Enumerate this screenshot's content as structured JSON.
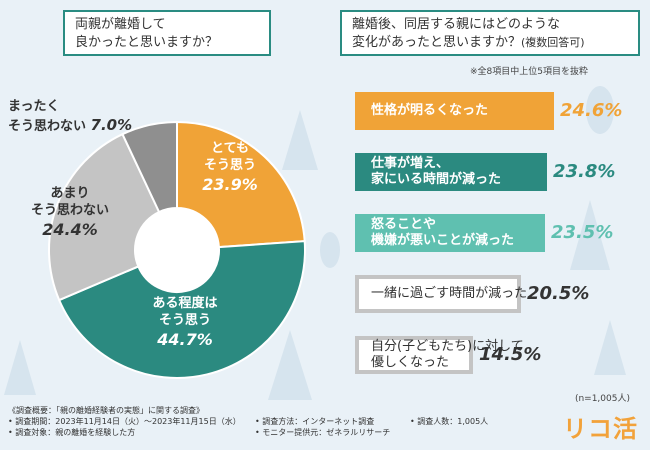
{
  "q1": {
    "line1": "両親が離婚して",
    "line2": "良かったと思いますか？"
  },
  "q2": {
    "line1": "離婚後、同居する親にはどのような",
    "line2": "変化があったと思いますか？",
    "line2_small": "(複数回答可)"
  },
  "note_top": "※全8項目中上位5項目を抜粋",
  "chart_data": [
    {
      "type": "pie",
      "title": "両親が離婚して良かったと思いますか？",
      "slices": [
        {
          "label_l1": "とても",
          "label_l2": "そう思う",
          "value": 23.9,
          "value_text": "23.9%",
          "color": "#f0a337"
        },
        {
          "label_l1": "ある程度は",
          "label_l2": "そう思う",
          "value": 44.7,
          "value_text": "44.7%",
          "color": "#2b8a80"
        },
        {
          "label_l1": "あまり",
          "label_l2": "そう思わない",
          "value": 24.4,
          "value_text": "24.4%",
          "color": "#c4c4c4"
        },
        {
          "label_l1": "まったく",
          "label_l2": "そう思わない",
          "value": 7.0,
          "value_text": "7.0%",
          "color": "#8f8f8f"
        }
      ]
    },
    {
      "type": "bar",
      "title": "離婚後、同居する親にはどのような変化があったと思いますか？(複数回答可)",
      "items": [
        {
          "label_l1": "性格が明るくなった",
          "label_l2": "",
          "value": 24.6,
          "value_text": "24.6%",
          "color": "#f0a337"
        },
        {
          "label_l1": "仕事が増え、",
          "label_l2": "家にいる時間が減った",
          "value": 23.8,
          "value_text": "23.8%",
          "color": "#2b8a80"
        },
        {
          "label_l1": "怒ることや",
          "label_l2": "機嫌が悪いことが減った",
          "value": 23.5,
          "value_text": "23.5%",
          "color": "#5fc0b0"
        },
        {
          "label_l1": "一緒に過ごす時間が減った",
          "label_l2": "",
          "value": 20.5,
          "value_text": "20.5%",
          "color": "#c4c4c4"
        },
        {
          "label_l1": "自分(子どもたち)に対して",
          "label_l2": "優しくなった",
          "value": 14.5,
          "value_text": "14.5%",
          "color": "#c4c4c4"
        }
      ]
    }
  ],
  "n_note": "(n=1,005人)",
  "footer": {
    "l1": "《調査概要：「親の離婚経験者の実態」に関する調査》",
    "l2": "• 調査期間：2023年11月14日（火）～2023年11月15日（水）",
    "l3": "• 調査対象：親の離婚を経験した方",
    "l4": "• 調査方法：インターネット調査",
    "l5": "• モニター提供元：ゼネラルリサーチ",
    "l6": "• 調査人数：1,005人"
  },
  "logo": "リコ活"
}
